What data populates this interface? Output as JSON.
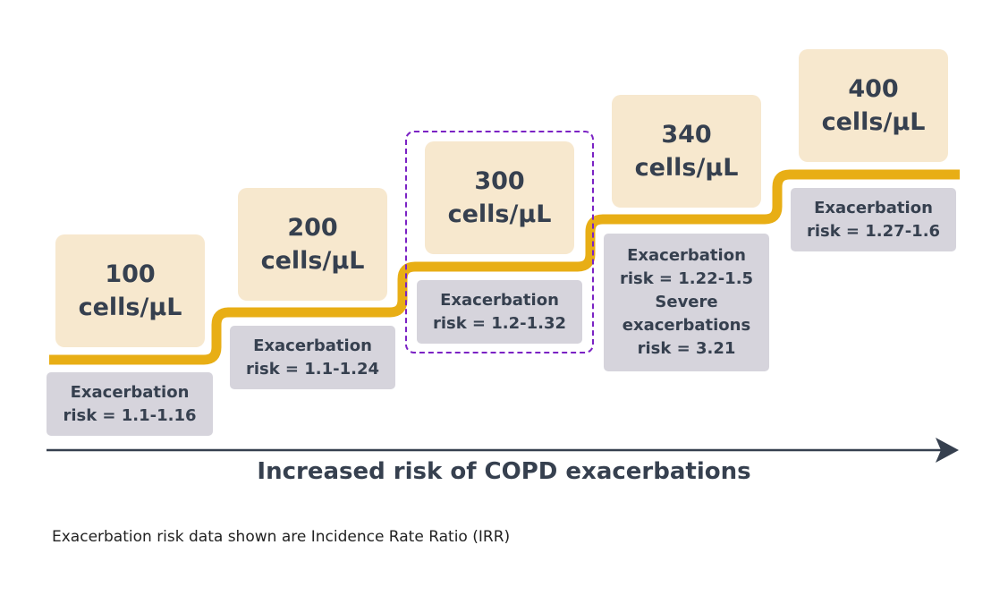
{
  "steps": [
    {
      "count_value": "100",
      "count_unit": "cells/µL",
      "risk_lines": [
        "Exacerbation",
        "risk = 1.1-1.16"
      ]
    },
    {
      "count_value": "200",
      "count_unit": "cells/µL",
      "risk_lines": [
        "Exacerbation",
        "risk = 1.1-1.24"
      ]
    },
    {
      "count_value": "300",
      "count_unit": "cells/µL",
      "risk_lines": [
        "Exacerbation",
        "risk = 1.2-1.32"
      ]
    },
    {
      "count_value": "340",
      "count_unit": "cells/µL",
      "risk_lines": [
        "Exacerbation",
        "risk = 1.22-1.5",
        "Severe",
        "exacerbations",
        "risk = 3.21"
      ]
    },
    {
      "count_value": "400",
      "count_unit": "cells/µL",
      "risk_lines": [
        "Exacerbation",
        "risk = 1.27-1.6"
      ]
    }
  ],
  "highlighted_step": "300",
  "axis_title": "Increased risk of COPD exacerbations",
  "footnote": "Exacerbation risk data shown are Incidence Rate Ratio (IRR)",
  "colors": {
    "staircase": "#e8ae15",
    "count_box": "#f7e8ce",
    "risk_box": "#d6d4dc",
    "text": "#36404f",
    "highlight_border": "#7b22c4",
    "axis": "#36404f"
  }
}
